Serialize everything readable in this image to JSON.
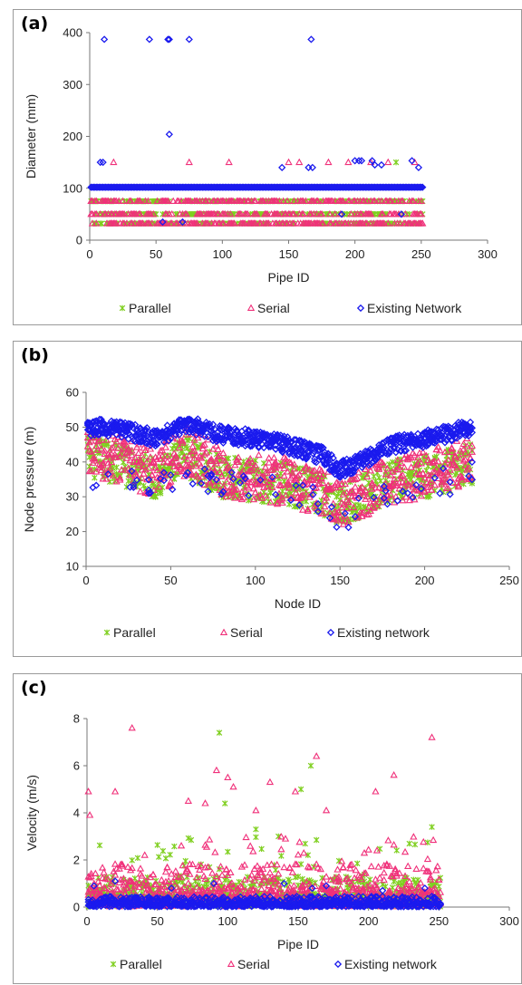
{
  "colors": {
    "parallel": "#7fcf1f",
    "serial": "#f0307a",
    "existing": "#1a1aee",
    "axis": "#777777"
  },
  "chart_data": [
    {
      "panel_label": "(a)",
      "type": "scatter",
      "xlabel": "Pipe ID",
      "ylabel": "Diameter (mm)",
      "xlim": [
        0,
        300
      ],
      "ylim": [
        0,
        400
      ],
      "xticks": [
        0,
        50,
        100,
        150,
        200,
        250,
        300
      ],
      "yticks": [
        0,
        100,
        200,
        300,
        400
      ],
      "legend_position": "bottom",
      "series": [
        {
          "name": "Parallel",
          "marker": "star",
          "pattern": "levels",
          "x_range": [
            1,
            251
          ],
          "levels": [
            32,
            50,
            75
          ],
          "extra": [
            [
              231,
              150
            ],
            [
              100,
              75
            ],
            [
              155,
              50
            ]
          ]
        },
        {
          "name": "Serial",
          "marker": "triangle",
          "pattern": "levels",
          "x_range": [
            1,
            251
          ],
          "levels": [
            32,
            50,
            75
          ],
          "extra": [
            [
              18,
              150
            ],
            [
              75,
              150
            ],
            [
              105,
              150
            ],
            [
              150,
              150
            ],
            [
              158,
              150
            ],
            [
              180,
              150
            ],
            [
              195,
              150
            ],
            [
              212,
              150
            ],
            [
              225,
              150
            ],
            [
              245,
              150
            ]
          ]
        },
        {
          "name": "Existing Network",
          "marker": "diamond",
          "pattern": "levels",
          "x_range": [
            1,
            251
          ],
          "levels": [
            102
          ],
          "extra": [
            [
              8,
              150
            ],
            [
              10,
              150
            ],
            [
              11,
              387
            ],
            [
              45,
              387
            ],
            [
              59,
              387
            ],
            [
              60,
              387
            ],
            [
              75,
              387
            ],
            [
              167,
              387
            ],
            [
              60,
              204
            ],
            [
              200,
              153
            ],
            [
              203,
              153
            ],
            [
              205,
              153
            ],
            [
              213,
              153
            ],
            [
              215,
              145
            ],
            [
              220,
              145
            ],
            [
              243,
              153
            ],
            [
              248,
              140
            ],
            [
              165,
              140
            ],
            [
              168,
              140
            ],
            [
              145,
              140
            ],
            [
              55,
              35
            ],
            [
              70,
              35
            ],
            [
              190,
              50
            ],
            [
              235,
              50
            ]
          ]
        }
      ]
    },
    {
      "panel_label": "(b)",
      "type": "scatter",
      "xlabel": "Node ID",
      "ylabel": "Node pressure (m)",
      "xlim": [
        0,
        250
      ],
      "ylim": [
        10,
        60
      ],
      "xticks": [
        0,
        50,
        100,
        150,
        200,
        250
      ],
      "yticks": [
        10,
        20,
        30,
        40,
        50,
        60
      ],
      "legend_position": "bottom",
      "series": [
        {
          "name": "Parallel",
          "marker": "star",
          "pattern": "profile",
          "x_range": [
            1,
            228
          ],
          "profile": [
            [
              0,
              44
            ],
            [
              20,
              42
            ],
            [
              40,
              38
            ],
            [
              60,
              44
            ],
            [
              80,
              38
            ],
            [
              100,
              37
            ],
            [
              120,
              36
            ],
            [
              140,
              33
            ],
            [
              150,
              30
            ],
            [
              160,
              32
            ],
            [
              180,
              37
            ],
            [
              200,
              38
            ],
            [
              228,
              42
            ]
          ],
          "spread": 12
        },
        {
          "name": "Serial",
          "marker": "triangle",
          "pattern": "profile",
          "x_range": [
            1,
            228
          ],
          "profile": [
            [
              0,
              45
            ],
            [
              20,
              43
            ],
            [
              40,
              40
            ],
            [
              60,
              46
            ],
            [
              80,
              40
            ],
            [
              100,
              38
            ],
            [
              120,
              37
            ],
            [
              140,
              34
            ],
            [
              150,
              31
            ],
            [
              160,
              33
            ],
            [
              180,
              38
            ],
            [
              200,
              39
            ],
            [
              228,
              44
            ]
          ],
          "spread": 14
        },
        {
          "name": "Existing network",
          "marker": "diamond",
          "pattern": "profile",
          "x_range": [
            1,
            228
          ],
          "profile": [
            [
              0,
              50
            ],
            [
              20,
              50
            ],
            [
              40,
              47
            ],
            [
              60,
              51
            ],
            [
              80,
              48
            ],
            [
              100,
              47
            ],
            [
              120,
              45
            ],
            [
              140,
              42
            ],
            [
              150,
              38
            ],
            [
              160,
              40
            ],
            [
              180,
              45
            ],
            [
              200,
              47
            ],
            [
              228,
              50
            ]
          ],
          "spread": 5
        }
      ]
    },
    {
      "panel_label": "(c)",
      "type": "scatter",
      "xlabel": "Pipe ID",
      "ylabel": "Velocity (m/s)",
      "xlim": [
        0,
        300
      ],
      "ylim": [
        0,
        8
      ],
      "xticks": [
        0,
        50,
        100,
        150,
        200,
        250,
        300
      ],
      "yticks": [
        0,
        2,
        4,
        6,
        8
      ],
      "legend_position": "bottom",
      "series": [
        {
          "name": "Parallel",
          "marker": "star",
          "pattern": "velocity",
          "x_range": [
            1,
            251
          ],
          "base": 1.0,
          "extra": [
            [
              94,
              7.4
            ],
            [
              159,
              6.0
            ],
            [
              152,
              5.0
            ],
            [
              245,
              3.4
            ],
            [
              120,
              3.3
            ],
            [
              136,
              3.0
            ],
            [
              98,
              4.4
            ]
          ]
        },
        {
          "name": "Serial",
          "marker": "triangle",
          "pattern": "velocity",
          "x_range": [
            1,
            251
          ],
          "base": 1.4,
          "extra": [
            [
              1,
              4.9
            ],
            [
              2,
              3.9
            ],
            [
              32,
              7.6
            ],
            [
              20,
              4.9
            ],
            [
              92,
              5.8
            ],
            [
              100,
              5.5
            ],
            [
              104,
              5.1
            ],
            [
              130,
              5.3
            ],
            [
              163,
              6.4
            ],
            [
              245,
              7.2
            ],
            [
              218,
              5.6
            ],
            [
              205,
              4.9
            ],
            [
              148,
              4.9
            ],
            [
              72,
              4.5
            ],
            [
              84,
              4.4
            ],
            [
              120,
              4.1
            ],
            [
              170,
              4.1
            ]
          ]
        },
        {
          "name": "Existing network",
          "marker": "diamond",
          "pattern": "velocity",
          "x_range": [
            1,
            251
          ],
          "base": 0.35,
          "extra": [
            [
              5,
              0.9
            ],
            [
              20,
              1.1
            ],
            [
              60,
              0.8
            ],
            [
              90,
              1.0
            ],
            [
              140,
              1.0
            ],
            [
              160,
              0.8
            ],
            [
              170,
              0.9
            ],
            [
              210,
              0.7
            ],
            [
              240,
              0.8
            ]
          ]
        }
      ]
    }
  ]
}
